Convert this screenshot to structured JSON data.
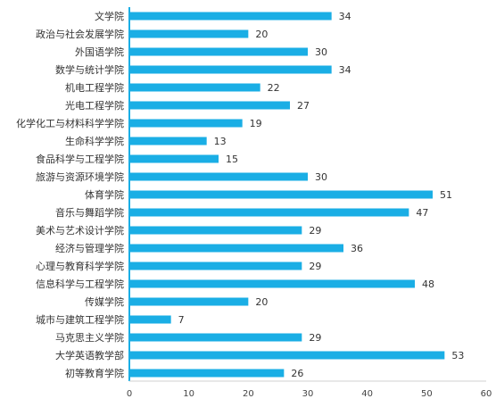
{
  "chart_data": {
    "type": "bar",
    "orientation": "horizontal",
    "categories": [
      "文学院",
      "政治与社会发展学院",
      "外国语学院",
      "数学与统计学院",
      "机电工程学院",
      "光电工程学院",
      "化学化工与材料科学学院",
      "生命科学学院",
      "食品科学与工程学院",
      "旅游与资源环境学院",
      "体育学院",
      "音乐与舞蹈学院",
      "美术与艺术设计学院",
      "经济与管理学院",
      "心理与教育科学学院",
      "信息科学与工程学院",
      "传媒学院",
      "城市与建筑工程学院",
      "马克思主义学院",
      "大学英语教学部",
      "初等教育学院"
    ],
    "values": [
      34,
      20,
      30,
      34,
      22,
      27,
      19,
      13,
      15,
      30,
      51,
      47,
      29,
      36,
      29,
      48,
      20,
      7,
      29,
      53,
      26
    ],
    "xlim": [
      0,
      60
    ],
    "xticks": [
      0,
      10,
      20,
      30,
      40,
      50,
      60
    ],
    "data_labels": true,
    "grid": false,
    "bar_color": "#1aaee5",
    "axis_color": "#1aaee5"
  }
}
